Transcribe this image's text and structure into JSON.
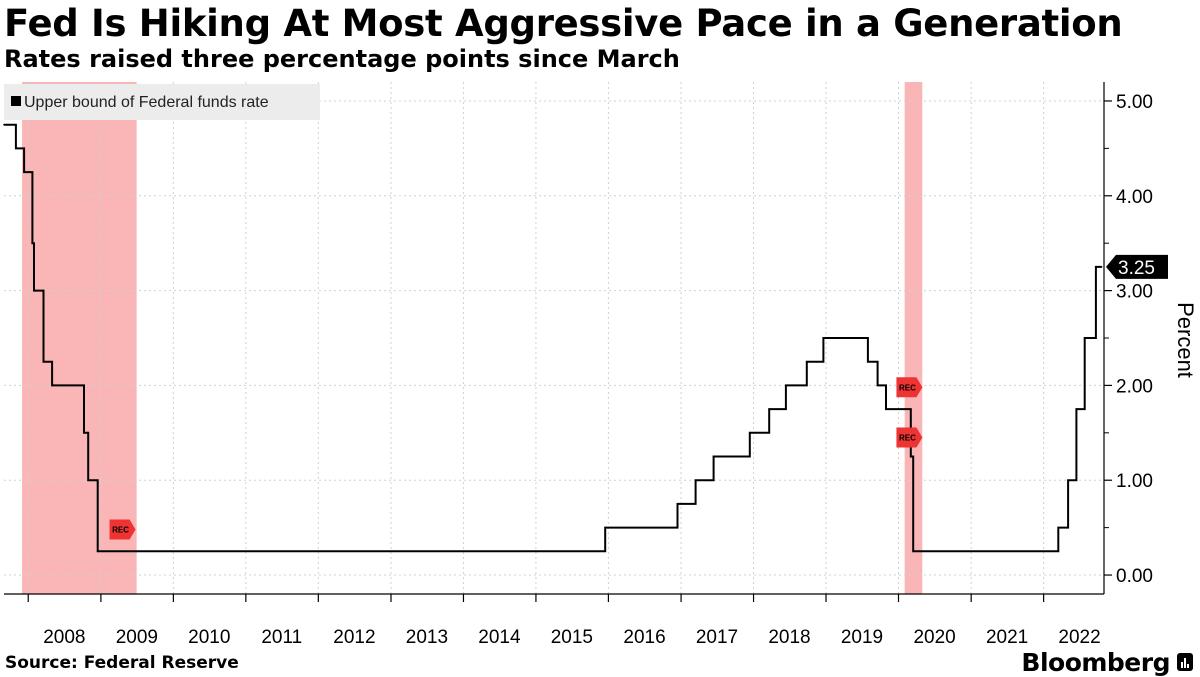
{
  "header": {
    "title": "Fed Is Hiking At Most Aggressive Pace in a Generation",
    "subtitle": "Rates raised three percentage points since March"
  },
  "footer": {
    "source": "Source: Federal Reserve",
    "brand": "Bloomberg"
  },
  "colors": {
    "line": "#000000",
    "recession_shade": "#f9a9a9",
    "rec_marker": "#ee3333",
    "grid": "#d0d0d0"
  },
  "chart_data": {
    "type": "line",
    "step": true,
    "title": "Fed Is Hiking At Most Aggressive Pace in a Generation",
    "subtitle": "Rates raised three percentage points since March",
    "ylabel": "Percent",
    "xlabel": "",
    "ylim": [
      -0.2,
      5.2
    ],
    "xlim": [
      "2007-09-01",
      "2022-11-01"
    ],
    "y_ticks": [
      "0.00",
      "1.00",
      "2.00",
      "3.00",
      "4.00",
      "5.00"
    ],
    "x_ticks": [
      "2008",
      "2009",
      "2010",
      "2011",
      "2012",
      "2013",
      "2014",
      "2015",
      "2016",
      "2017",
      "2018",
      "2019",
      "2020",
      "2021",
      "2022"
    ],
    "grid": true,
    "legend": {
      "position": "top-left",
      "entries": [
        "Upper bound of Federal funds rate"
      ]
    },
    "last_value_label": "3.25",
    "recessions": [
      {
        "start": "2007-12-01",
        "end": "2009-06-30",
        "label": "REC"
      },
      {
        "start": "2020-02-01",
        "end": "2020-04-30",
        "label": "REC"
      }
    ],
    "rec_markers": [
      {
        "date": "2009-04-15",
        "value": 0.48,
        "label": "REC"
      },
      {
        "date": "2020-02-20",
        "value": 1.98,
        "label": "REC"
      },
      {
        "date": "2020-02-20",
        "value": 1.45,
        "label": "REC"
      }
    ],
    "series": [
      {
        "name": "Upper bound of Federal funds rate",
        "points": [
          [
            "2007-09-01",
            4.75
          ],
          [
            "2007-10-31",
            4.5
          ],
          [
            "2007-12-11",
            4.25
          ],
          [
            "2008-01-22",
            3.5
          ],
          [
            "2008-01-30",
            3.0
          ],
          [
            "2008-03-18",
            2.25
          ],
          [
            "2008-04-30",
            2.0
          ],
          [
            "2008-10-08",
            1.5
          ],
          [
            "2008-10-29",
            1.0
          ],
          [
            "2008-12-16",
            0.25
          ],
          [
            "2015-12-16",
            0.5
          ],
          [
            "2016-12-14",
            0.75
          ],
          [
            "2017-03-15",
            1.0
          ],
          [
            "2017-06-14",
            1.25
          ],
          [
            "2017-12-13",
            1.5
          ],
          [
            "2018-03-21",
            1.75
          ],
          [
            "2018-06-13",
            2.0
          ],
          [
            "2018-09-26",
            2.25
          ],
          [
            "2018-12-19",
            2.5
          ],
          [
            "2019-07-31",
            2.25
          ],
          [
            "2019-09-18",
            2.0
          ],
          [
            "2019-10-30",
            1.75
          ],
          [
            "2020-03-03",
            1.25
          ],
          [
            "2020-03-15",
            0.25
          ],
          [
            "2022-03-16",
            0.5
          ],
          [
            "2022-05-04",
            1.0
          ],
          [
            "2022-06-15",
            1.75
          ],
          [
            "2022-07-27",
            2.5
          ],
          [
            "2022-09-21",
            3.25
          ],
          [
            "2022-10-20",
            3.25
          ]
        ]
      }
    ]
  }
}
